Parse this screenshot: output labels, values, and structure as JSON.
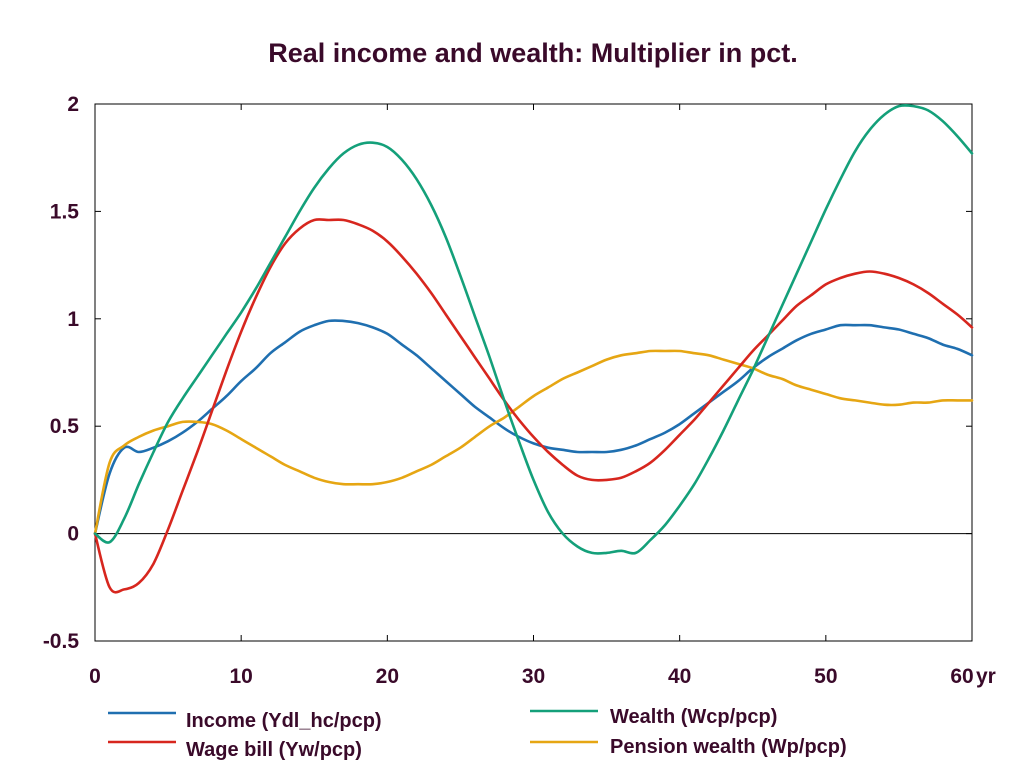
{
  "chart_data": {
    "type": "line",
    "title": "Real income and wealth: Multiplier in pct.",
    "xlabel": "",
    "ylabel": "",
    "x_unit_label": "yr",
    "xlim": [
      0,
      60
    ],
    "ylim": [
      -0.5,
      2
    ],
    "x_ticks": [
      0,
      10,
      20,
      30,
      40,
      50,
      60
    ],
    "x_tick_labels": [
      "0",
      "10",
      "20",
      "30",
      "40",
      "50",
      "60"
    ],
    "y_ticks": [
      -0.5,
      0,
      0.5,
      1,
      1.5,
      2
    ],
    "y_tick_labels": [
      "-0.5",
      "0",
      "0.5",
      "1",
      "1.5",
      "2"
    ],
    "grid": false,
    "zero_line": true,
    "legend_position": "bottom",
    "x": [
      0,
      1,
      2,
      3,
      4,
      5,
      6,
      7,
      8,
      9,
      10,
      11,
      12,
      13,
      14,
      15,
      16,
      17,
      18,
      19,
      20,
      21,
      22,
      23,
      24,
      25,
      26,
      27,
      28,
      29,
      30,
      31,
      32,
      33,
      34,
      35,
      36,
      37,
      38,
      39,
      40,
      41,
      42,
      43,
      44,
      45,
      46,
      47,
      48,
      49,
      50,
      51,
      52,
      53,
      54,
      55,
      56,
      57,
      58,
      59,
      60
    ],
    "series": [
      {
        "name": "Income (Ydl_hc/pcp)",
        "color": "#1f6fb0",
        "values": [
          0.0,
          0.28,
          0.4,
          0.38,
          0.4,
          0.43,
          0.47,
          0.52,
          0.58,
          0.64,
          0.71,
          0.77,
          0.84,
          0.89,
          0.94,
          0.97,
          0.99,
          0.99,
          0.98,
          0.96,
          0.93,
          0.88,
          0.83,
          0.77,
          0.71,
          0.65,
          0.59,
          0.54,
          0.49,
          0.45,
          0.42,
          0.4,
          0.39,
          0.38,
          0.38,
          0.38,
          0.39,
          0.41,
          0.44,
          0.47,
          0.51,
          0.56,
          0.61,
          0.66,
          0.71,
          0.77,
          0.82,
          0.86,
          0.9,
          0.93,
          0.95,
          0.97,
          0.97,
          0.97,
          0.96,
          0.95,
          0.93,
          0.91,
          0.88,
          0.86,
          0.83
        ]
      },
      {
        "name": "Wage bill (Yw/pcp)",
        "color": "#d7261e",
        "values": [
          0.0,
          -0.25,
          -0.26,
          -0.23,
          -0.14,
          0.02,
          0.2,
          0.38,
          0.57,
          0.76,
          0.94,
          1.1,
          1.24,
          1.35,
          1.42,
          1.46,
          1.46,
          1.46,
          1.44,
          1.41,
          1.36,
          1.29,
          1.21,
          1.12,
          1.02,
          0.92,
          0.82,
          0.72,
          0.62,
          0.53,
          0.45,
          0.38,
          0.32,
          0.27,
          0.25,
          0.25,
          0.26,
          0.29,
          0.33,
          0.39,
          0.46,
          0.53,
          0.61,
          0.69,
          0.77,
          0.85,
          0.92,
          0.99,
          1.06,
          1.11,
          1.16,
          1.19,
          1.21,
          1.22,
          1.21,
          1.19,
          1.16,
          1.12,
          1.07,
          1.02,
          0.96
        ]
      },
      {
        "name": "Wealth (Wcp/pcp)",
        "color": "#14a07a",
        "values": [
          0.0,
          -0.04,
          0.07,
          0.23,
          0.38,
          0.52,
          0.63,
          0.73,
          0.83,
          0.93,
          1.03,
          1.14,
          1.26,
          1.38,
          1.5,
          1.61,
          1.7,
          1.77,
          1.81,
          1.82,
          1.8,
          1.74,
          1.65,
          1.53,
          1.38,
          1.2,
          1.01,
          0.82,
          0.62,
          0.43,
          0.25,
          0.1,
          0.0,
          -0.06,
          -0.09,
          -0.09,
          -0.08,
          -0.09,
          -0.03,
          0.04,
          0.13,
          0.23,
          0.35,
          0.48,
          0.62,
          0.76,
          0.91,
          1.06,
          1.21,
          1.36,
          1.51,
          1.65,
          1.78,
          1.88,
          1.95,
          1.99,
          1.99,
          1.97,
          1.92,
          1.85,
          1.77
        ]
      },
      {
        "name": "Pension wealth (Wp/pcp)",
        "color": "#e6a613",
        "values": [
          0.0,
          0.33,
          0.41,
          0.45,
          0.48,
          0.5,
          0.52,
          0.52,
          0.51,
          0.48,
          0.44,
          0.4,
          0.36,
          0.32,
          0.29,
          0.26,
          0.24,
          0.23,
          0.23,
          0.23,
          0.24,
          0.26,
          0.29,
          0.32,
          0.36,
          0.4,
          0.45,
          0.5,
          0.54,
          0.59,
          0.64,
          0.68,
          0.72,
          0.75,
          0.78,
          0.81,
          0.83,
          0.84,
          0.85,
          0.85,
          0.85,
          0.84,
          0.83,
          0.81,
          0.79,
          0.77,
          0.74,
          0.72,
          0.69,
          0.67,
          0.65,
          0.63,
          0.62,
          0.61,
          0.6,
          0.6,
          0.61,
          0.61,
          0.62,
          0.62,
          0.62
        ]
      }
    ]
  }
}
